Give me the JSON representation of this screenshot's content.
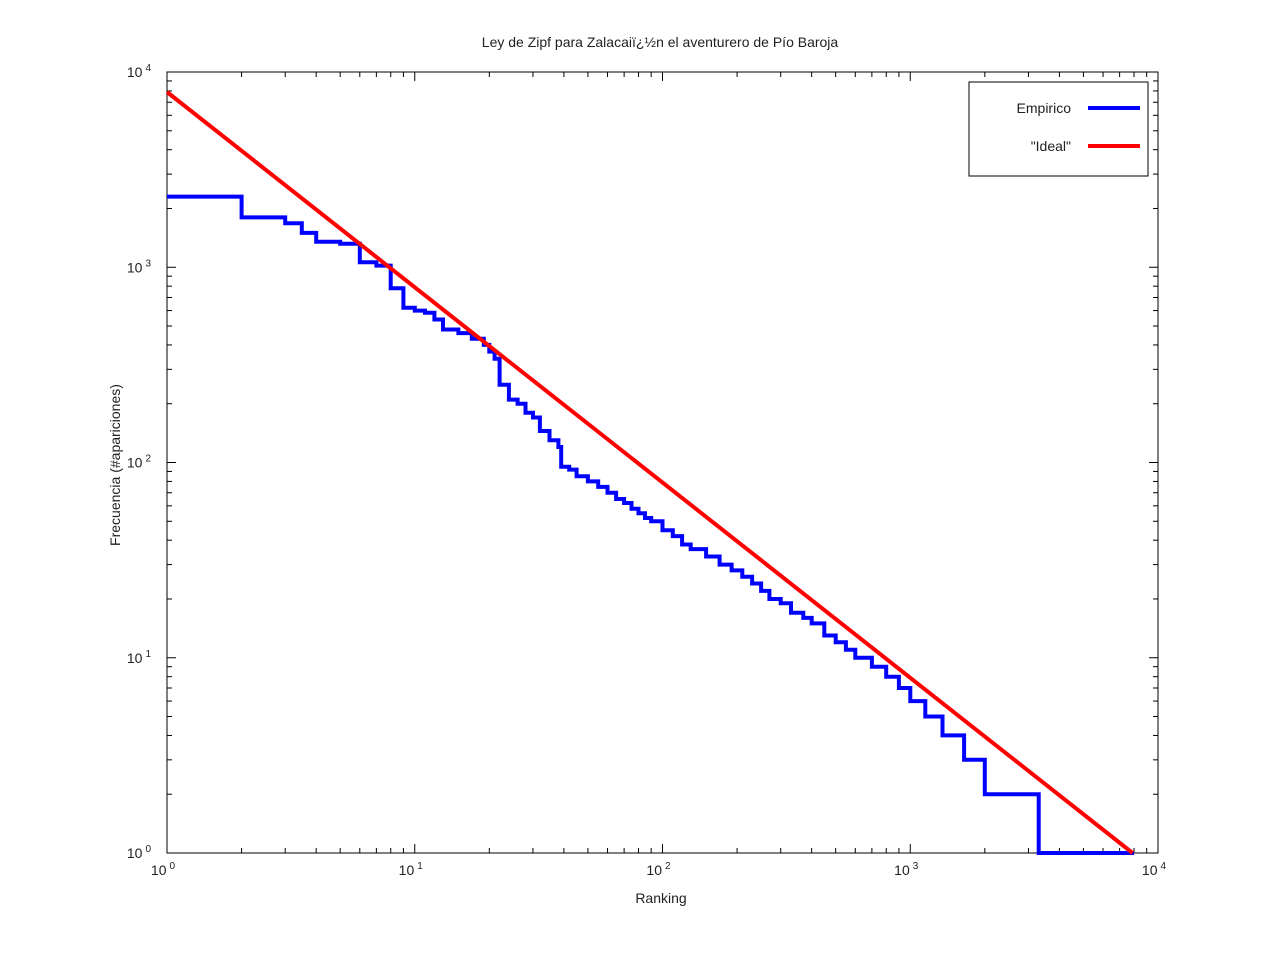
{
  "chart_data": {
    "type": "line",
    "title": "Ley de Zipf para Zalacaiï¿½n el aventurero de Pío Baroja",
    "xlabel": "Ranking",
    "ylabel": "Frecuencia (#apariciones)",
    "x_scale": "log",
    "y_scale": "log",
    "xlim": [
      1,
      10000
    ],
    "ylim": [
      1,
      10000
    ],
    "grid": false,
    "legend_position": "top-right",
    "x_ticks": [
      {
        "base": "10",
        "exp": "0"
      },
      {
        "base": "10",
        "exp": "1"
      },
      {
        "base": "10",
        "exp": "2"
      },
      {
        "base": "10",
        "exp": "3"
      },
      {
        "base": "10",
        "exp": "4"
      }
    ],
    "y_ticks": [
      {
        "base": "10",
        "exp": "0"
      },
      {
        "base": "10",
        "exp": "1"
      },
      {
        "base": "10",
        "exp": "2"
      },
      {
        "base": "10",
        "exp": "3"
      },
      {
        "base": "10",
        "exp": "4"
      }
    ],
    "series": [
      {
        "name": "Empirico",
        "color": "#0000ff",
        "step": "post",
        "points": [
          [
            1,
            2300
          ],
          [
            2,
            1800
          ],
          [
            3,
            1680
          ],
          [
            3.5,
            1500
          ],
          [
            4,
            1350
          ],
          [
            5,
            1320
          ],
          [
            6,
            1060
          ],
          [
            7,
            1020
          ],
          [
            8,
            780
          ],
          [
            9,
            620
          ],
          [
            10,
            600
          ],
          [
            11,
            585
          ],
          [
            12,
            540
          ],
          [
            13,
            480
          ],
          [
            15,
            460
          ],
          [
            17,
            430
          ],
          [
            19,
            400
          ],
          [
            20,
            370
          ],
          [
            21,
            340
          ],
          [
            22,
            250
          ],
          [
            24,
            210
          ],
          [
            26,
            200
          ],
          [
            28,
            180
          ],
          [
            30,
            170
          ],
          [
            32,
            145
          ],
          [
            35,
            130
          ],
          [
            38,
            120
          ],
          [
            39,
            95
          ],
          [
            42,
            92
          ],
          [
            45,
            85
          ],
          [
            50,
            80
          ],
          [
            55,
            75
          ],
          [
            60,
            70
          ],
          [
            65,
            65
          ],
          [
            70,
            62
          ],
          [
            75,
            58
          ],
          [
            80,
            55
          ],
          [
            85,
            52
          ],
          [
            90,
            50
          ],
          [
            100,
            45
          ],
          [
            110,
            42
          ],
          [
            120,
            38
          ],
          [
            130,
            36
          ],
          [
            150,
            33
          ],
          [
            170,
            30
          ],
          [
            190,
            28
          ],
          [
            210,
            26
          ],
          [
            230,
            24
          ],
          [
            250,
            22
          ],
          [
            270,
            20
          ],
          [
            300,
            19
          ],
          [
            330,
            17
          ],
          [
            370,
            16
          ],
          [
            400,
            15
          ],
          [
            450,
            13
          ],
          [
            500,
            12
          ],
          [
            550,
            11
          ],
          [
            600,
            10
          ],
          [
            700,
            9
          ],
          [
            800,
            8
          ],
          [
            900,
            7
          ],
          [
            1000,
            6
          ],
          [
            1150,
            5
          ],
          [
            1350,
            4
          ],
          [
            1650,
            3
          ],
          [
            2000,
            2
          ],
          [
            3300,
            1
          ],
          [
            8000,
            1
          ]
        ]
      },
      {
        "name": "\"Ideal\"",
        "color": "#ff0000",
        "step": "none",
        "points": [
          [
            1,
            7900
          ],
          [
            7900,
            1
          ]
        ]
      }
    ]
  }
}
